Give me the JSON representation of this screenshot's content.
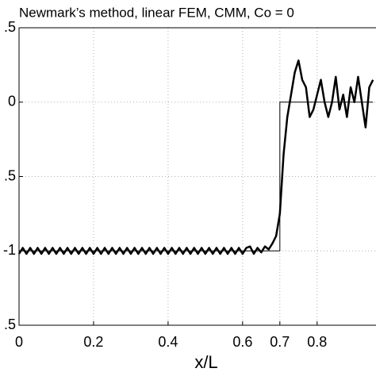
{
  "chart_data": {
    "type": "line",
    "title": "Newmark’s method, linear FEM, CMM, Co = 0",
    "x_label": "x/L",
    "xlim": [
      0,
      0.958
    ],
    "ylim": [
      -1.5,
      0.5
    ],
    "xticks": [
      0,
      0.2,
      0.4,
      0.6,
      0.7,
      0.8
    ],
    "yticks": [
      {
        "value": 0.5,
        "label": ".5"
      },
      0,
      {
        "value": -0.5,
        "label": ".5"
      },
      -1,
      {
        "value": -1.5,
        "label": ".5"
      }
    ],
    "grid": true,
    "series": [
      {
        "color": "#000000",
        "width": 1,
        "x": [
          0,
          0.7,
          0.7,
          0.95
        ],
        "values": [
          -1,
          -1,
          0,
          0
        ]
      },
      {
        "color": "#000000",
        "width": 2.5,
        "x": [
          0,
          0.01,
          0.02,
          0.03,
          0.04,
          0.05,
          0.06,
          0.07,
          0.08,
          0.09,
          0.1,
          0.11,
          0.12,
          0.13,
          0.14,
          0.15,
          0.16,
          0.17,
          0.18,
          0.19,
          0.2,
          0.21,
          0.22,
          0.23,
          0.24,
          0.25,
          0.26,
          0.27,
          0.28,
          0.29,
          0.3,
          0.31,
          0.32,
          0.33,
          0.34,
          0.35,
          0.36,
          0.37,
          0.38,
          0.39,
          0.4,
          0.41,
          0.42,
          0.43,
          0.44,
          0.45,
          0.46,
          0.47,
          0.48,
          0.49,
          0.5,
          0.51,
          0.52,
          0.53,
          0.54,
          0.55,
          0.56,
          0.57,
          0.58,
          0.59,
          0.6,
          0.61,
          0.62,
          0.63,
          0.64,
          0.65,
          0.66,
          0.67,
          0.68,
          0.69,
          0.7,
          0.71,
          0.72,
          0.73,
          0.74,
          0.75,
          0.76,
          0.77,
          0.78,
          0.79,
          0.8,
          0.81,
          0.82,
          0.83,
          0.84,
          0.85,
          0.86,
          0.87,
          0.88,
          0.89,
          0.9,
          0.91,
          0.92,
          0.93,
          0.94,
          0.95
        ],
        "values": [
          -1.02,
          -0.98,
          -1.02,
          -0.98,
          -1.02,
          -0.98,
          -1.02,
          -0.98,
          -1.02,
          -0.98,
          -1.02,
          -0.98,
          -1.02,
          -0.98,
          -1.02,
          -0.98,
          -1.02,
          -0.98,
          -1.02,
          -0.98,
          -1.02,
          -0.98,
          -1.02,
          -0.98,
          -1.02,
          -0.98,
          -1.02,
          -0.98,
          -1.02,
          -0.98,
          -1.02,
          -0.98,
          -1.02,
          -0.98,
          -1.02,
          -0.98,
          -1.02,
          -0.98,
          -1.02,
          -0.98,
          -1.02,
          -0.98,
          -1.02,
          -0.98,
          -1.02,
          -0.98,
          -1.02,
          -0.98,
          -1.02,
          -0.98,
          -1.02,
          -0.98,
          -1.02,
          -0.98,
          -1.02,
          -0.98,
          -1.02,
          -0.98,
          -1.02,
          -0.98,
          -1.02,
          -0.98,
          -0.97,
          -1.02,
          -0.98,
          -1.01,
          -0.97,
          -0.99,
          -0.95,
          -0.9,
          -0.75,
          -0.35,
          -0.1,
          0.05,
          0.2,
          0.28,
          0.15,
          0.1,
          -0.1,
          -0.05,
          0.05,
          0.15,
          0.0,
          -0.1,
          0.0,
          0.17,
          -0.05,
          0.05,
          -0.1,
          0.1,
          0.0,
          0.17,
          0.0,
          -0.17,
          0.1,
          0.15
        ]
      }
    ]
  }
}
